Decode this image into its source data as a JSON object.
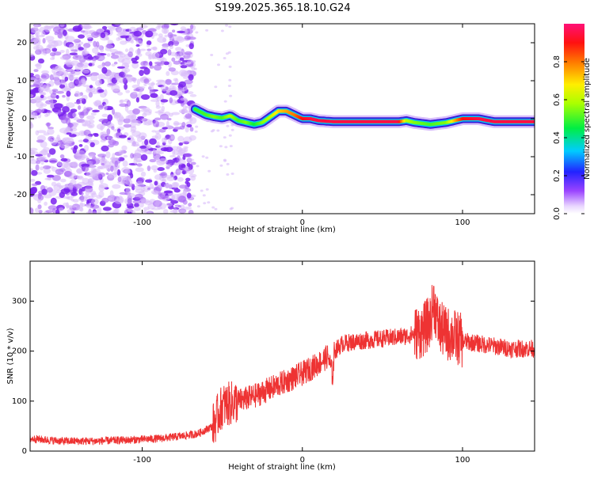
{
  "title": "S199.2025.365.18.10.G24",
  "chart_data": [
    {
      "type": "heatmap",
      "xlabel": "Height of straight line (km)",
      "ylabel": "Frequency (Hz)",
      "xlim": [
        -170,
        145
      ],
      "ylim": [
        -25,
        25
      ],
      "x_ticks": [
        -100,
        0,
        100
      ],
      "x_tick_labels": [
        "-100",
        "0",
        "100"
      ],
      "y_ticks": [
        -20,
        -10,
        0,
        10,
        20
      ],
      "y_tick_labels": [
        "-20",
        "-10",
        "0",
        "10",
        "20"
      ],
      "colorbar": {
        "label": "Normalized spectral amplitude",
        "range": [
          0,
          1
        ],
        "ticks": [
          0.0,
          0.2,
          0.4,
          0.6,
          0.8
        ],
        "tick_labels": [
          "0.0",
          "0.2",
          "0.4",
          "0.6",
          "0.8"
        ]
      },
      "noise_region_x": [
        -170,
        -68
      ],
      "ridge": {
        "x": [
          -67,
          -60,
          -55,
          -50,
          -45,
          -40,
          -35,
          -30,
          -25,
          -20,
          -15,
          -10,
          -5,
          0,
          5,
          10,
          20,
          40,
          60,
          65,
          70,
          80,
          90,
          100,
          110,
          120,
          145
        ],
        "frequency": [
          2.5,
          1.0,
          0.5,
          0.2,
          0.8,
          -0.5,
          -1.0,
          -1.5,
          -1.0,
          0.5,
          2.0,
          2.0,
          1.0,
          0.0,
          0.0,
          -0.5,
          -0.8,
          -0.8,
          -0.8,
          -0.5,
          -1.0,
          -1.5,
          -1.0,
          0.0,
          0.0,
          -0.8,
          -0.8
        ],
        "amplitude": [
          0.5,
          0.5,
          0.55,
          0.5,
          0.6,
          0.5,
          0.55,
          0.45,
          0.55,
          0.6,
          0.7,
          0.75,
          0.8,
          0.9,
          0.95,
          0.95,
          0.95,
          0.95,
          0.95,
          0.6,
          0.55,
          0.5,
          0.55,
          0.9,
          0.95,
          0.95,
          0.95
        ]
      }
    },
    {
      "type": "line",
      "xlabel": "Height of straight line (km)",
      "ylabel": "SNR (10 * v/v)",
      "xlim": [
        -170,
        145
      ],
      "ylim": [
        0,
        380
      ],
      "x_ticks": [
        -100,
        0,
        100
      ],
      "x_tick_labels": [
        "-100",
        "0",
        "100"
      ],
      "y_ticks": [
        0,
        100,
        200,
        300
      ],
      "y_tick_labels": [
        "0",
        "100",
        "200",
        "300"
      ],
      "color": "#ee3333",
      "series": [
        {
          "x": [
            -170,
            -150,
            -130,
            -110,
            -90,
            -75,
            -65,
            -56,
            -50,
            -40,
            -30,
            -20,
            -10,
            0,
            10,
            16,
            19,
            20,
            25,
            35,
            50,
            65,
            75,
            80,
            82,
            85,
            90,
            95,
            100,
            110,
            120,
            130,
            145
          ],
          "values": [
            25,
            20,
            20,
            22,
            25,
            30,
            35,
            50,
            90,
            100,
            110,
            125,
            140,
            155,
            175,
            190,
            150,
            200,
            215,
            220,
            225,
            230,
            240,
            260,
            300,
            250,
            235,
            230,
            220,
            215,
            210,
            205,
            205
          ]
        }
      ]
    }
  ]
}
